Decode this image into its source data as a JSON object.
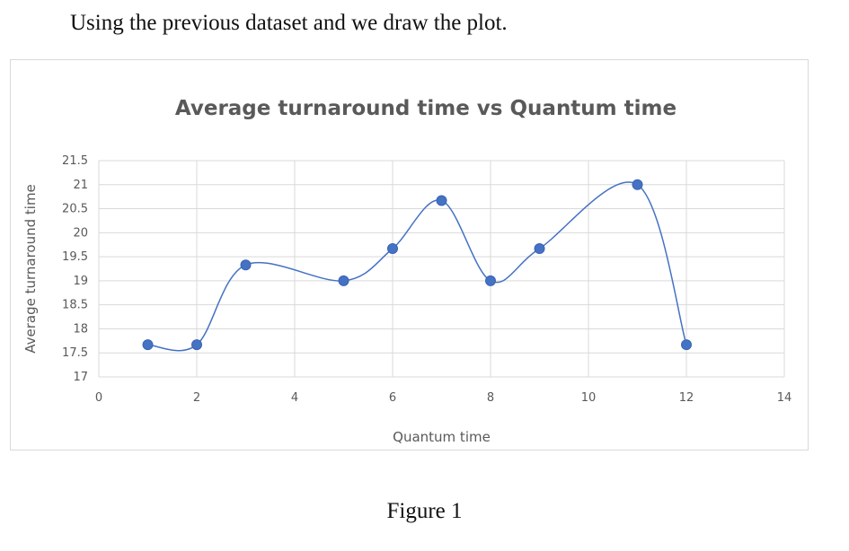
{
  "intro_text": "Using the previous dataset and we draw the plot.",
  "caption": "Figure 1",
  "chart_data": {
    "type": "line",
    "title": "Average turnaround time vs Quantum time",
    "xlabel": "Quantum time",
    "ylabel": "Average turnaround time",
    "xlim": [
      0,
      14
    ],
    "ylim": [
      17,
      21.5
    ],
    "x_ticks": [
      0,
      2,
      4,
      6,
      8,
      10,
      12,
      14
    ],
    "y_ticks": [
      17,
      17.5,
      18,
      18.5,
      19,
      19.5,
      20,
      20.5,
      21,
      21.5
    ],
    "grid": true,
    "smooth": true,
    "legend": "none",
    "series": [
      {
        "x": [
          1,
          2,
          3,
          5,
          6,
          7,
          8,
          9,
          11,
          12
        ],
        "y": [
          17.67,
          17.67,
          19.33,
          19.0,
          19.67,
          20.67,
          19.0,
          19.67,
          21.0,
          17.67
        ],
        "line_color": "#4472c4",
        "marker_color": "#4472c4"
      }
    ]
  }
}
